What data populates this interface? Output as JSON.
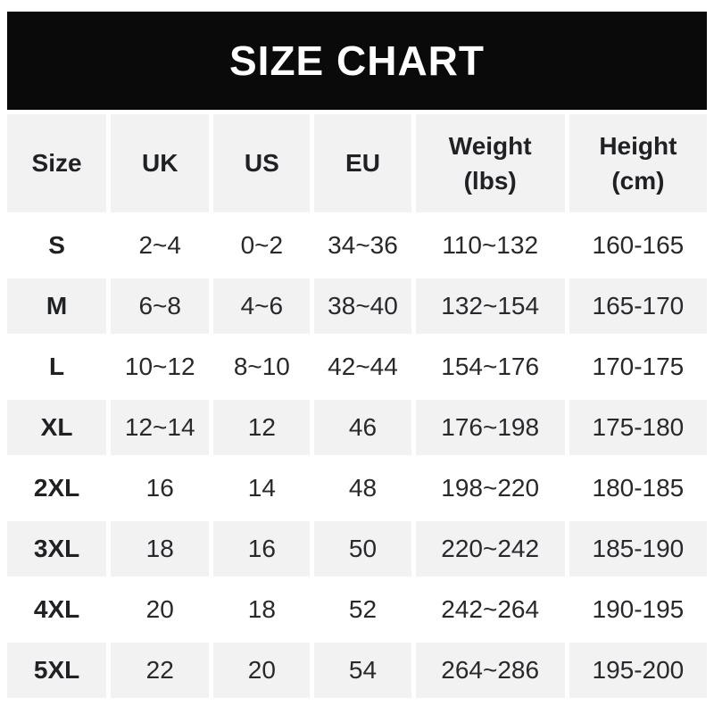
{
  "title": "SIZE CHART",
  "colors": {
    "page_bg": "#ffffff",
    "banner_bg": "#0a0a0a",
    "banner_text": "#ffffff",
    "row_shade": "#f2f2f3",
    "header_text": "#202124",
    "data_text": "#28292c"
  },
  "chart_data": {
    "type": "table",
    "title": "SIZE CHART",
    "columns": [
      {
        "key": "size",
        "label": "Size"
      },
      {
        "key": "uk",
        "label": "UK"
      },
      {
        "key": "us",
        "label": "US"
      },
      {
        "key": "eu",
        "label": "EU"
      },
      {
        "key": "weight_lbs",
        "label": "Weight\n(lbs)"
      },
      {
        "key": "height_cm",
        "label": "Height\n(cm)"
      }
    ],
    "rows": [
      [
        "S",
        "2~4",
        "0~2",
        "34~36",
        "110~132",
        "160-165"
      ],
      [
        "M",
        "6~8",
        "4~6",
        "38~40",
        "132~154",
        "165-170"
      ],
      [
        "L",
        "10~12",
        "8~10",
        "42~44",
        "154~176",
        "170-175"
      ],
      [
        "XL",
        "12~14",
        "12",
        "46",
        "176~198",
        "175-180"
      ],
      [
        "2XL",
        "16",
        "14",
        "48",
        "198~220",
        "180-185"
      ],
      [
        "3XL",
        "18",
        "16",
        "50",
        "220~242",
        "185-190"
      ],
      [
        "4XL",
        "20",
        "18",
        "52",
        "242~264",
        "190-195"
      ],
      [
        "5XL",
        "22",
        "20",
        "54",
        "264~286",
        "195-200"
      ]
    ],
    "layout": {
      "striping": "alternate rows shaded starting with second data row",
      "grid_lines": "none, white gutters between cells"
    }
  }
}
